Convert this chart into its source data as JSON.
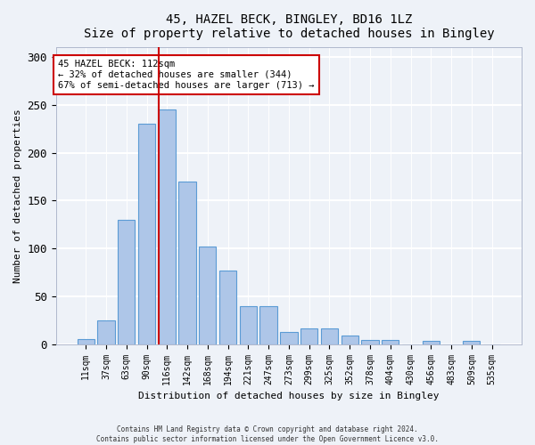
{
  "title": "45, HAZEL BECK, BINGLEY, BD16 1LZ",
  "subtitle": "Size of property relative to detached houses in Bingley",
  "xlabel": "Distribution of detached houses by size in Bingley",
  "ylabel": "Number of detached properties",
  "bar_color": "#aec6e8",
  "bar_edgecolor": "#5b9bd5",
  "categories": [
    "11sqm",
    "37sqm",
    "63sqm",
    "90sqm",
    "116sqm",
    "142sqm",
    "168sqm",
    "194sqm",
    "221sqm",
    "247sqm",
    "273sqm",
    "299sqm",
    "325sqm",
    "352sqm",
    "378sqm",
    "404sqm",
    "430sqm",
    "456sqm",
    "483sqm",
    "509sqm",
    "535sqm"
  ],
  "values": [
    5,
    25,
    130,
    230,
    245,
    170,
    102,
    77,
    40,
    40,
    13,
    16,
    16,
    9,
    4,
    4,
    0,
    3,
    0,
    3,
    0
  ],
  "red_line_index": 4,
  "annotation_text": "45 HAZEL BECK: 112sqm\n← 32% of detached houses are smaller (344)\n67% of semi-detached houses are larger (713) →",
  "annotation_box_color": "#ffffff",
  "annotation_box_edgecolor": "#cc0000",
  "red_line_color": "#cc0000",
  "ylim": [
    0,
    310
  ],
  "yticks": [
    0,
    50,
    100,
    150,
    200,
    250,
    300
  ],
  "footer1": "Contains HM Land Registry data © Crown copyright and database right 2024.",
  "footer2": "Contains public sector information licensed under the Open Government Licence v3.0.",
  "background_color": "#eef2f8",
  "grid_color": "#ffffff"
}
